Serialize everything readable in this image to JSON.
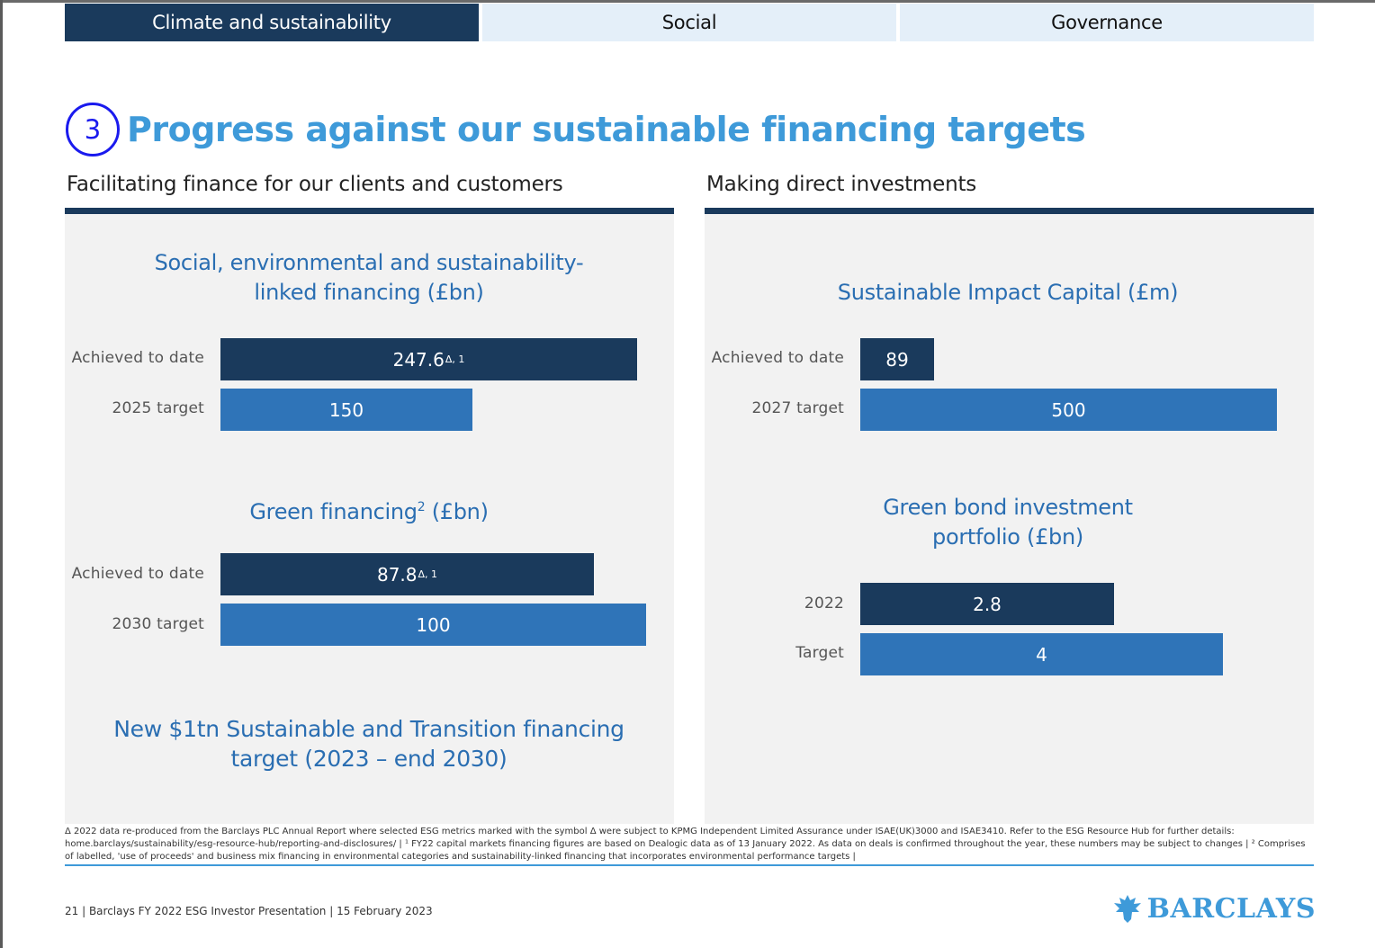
{
  "tabs": [
    {
      "label": "Climate and sustainability",
      "active": true
    },
    {
      "label": "Social",
      "active": false
    },
    {
      "label": "Governance",
      "active": false
    }
  ],
  "section": {
    "number": "3",
    "title": "Progress against our sustainable financing targets"
  },
  "left_panel": {
    "title": "Facilitating finance for our clients and customers",
    "new_target": "New $1tn Sustainable and Transition financing target (2023 – end 2030)"
  },
  "right_panel": {
    "title": "Making direct investments"
  },
  "chart_data": [
    {
      "type": "bar",
      "orientation": "horizontal",
      "title": "Social, environmental and sustainability-linked financing (£bn)",
      "categories": [
        "Achieved to date",
        "2025 target"
      ],
      "values": [
        247.6,
        150
      ],
      "value_labels": [
        "247.6",
        "150"
      ],
      "annotations": [
        "Δ, 1",
        ""
      ],
      "colors": [
        "#1a3a5c",
        "#2f74b8"
      ]
    },
    {
      "type": "bar",
      "orientation": "horizontal",
      "title_main": "Green financing",
      "title_sup": "2",
      "title_unit": "(£bn)",
      "categories": [
        "Achieved to date",
        "2030 target"
      ],
      "values": [
        87.8,
        100
      ],
      "value_labels": [
        "87.8",
        "100"
      ],
      "annotations": [
        "Δ, 1",
        ""
      ],
      "colors": [
        "#1a3a5c",
        "#2f74b8"
      ]
    },
    {
      "type": "bar",
      "orientation": "horizontal",
      "title": "Sustainable Impact Capital (£m)",
      "categories": [
        "Achieved to date",
        "2027 target"
      ],
      "values": [
        89,
        500
      ],
      "value_labels": [
        "89",
        "500"
      ],
      "colors": [
        "#1a3a5c",
        "#2f74b8"
      ]
    },
    {
      "type": "bar",
      "orientation": "horizontal",
      "title": "Green bond investment portfolio (£bn)",
      "categories": [
        "2022",
        "Target"
      ],
      "values": [
        2.8,
        4
      ],
      "value_labels": [
        "2.8",
        "4"
      ],
      "colors": [
        "#1a3a5c",
        "#2f74b8"
      ]
    }
  ],
  "footnote": "Δ 2022 data re-produced from the Barclays PLC Annual Report where selected ESG metrics marked with the symbol Δ were subject to KPMG Independent Limited Assurance under ISAE(UK)3000 and ISAE3410. Refer to the ESG Resource Hub for further details: home.barclays/sustainability/esg-resource-hub/reporting-and-disclosures/ | ¹ FY22 capital markets financing figures are based on Dealogic data as of 13 January 2022. As data on deals is confirmed throughout the year, these numbers may be subject to changes | ² Comprises of labelled, 'use of proceeds' and business mix financing in environmental categories and sustainability-linked financing that incorporates environmental performance targets |",
  "footer": {
    "text": "21 | Barclays FY 2022 ESG Investor Presentation | 15 February 2023"
  },
  "logo": {
    "text": "BARCLAYS",
    "icon": "eagle-icon"
  }
}
